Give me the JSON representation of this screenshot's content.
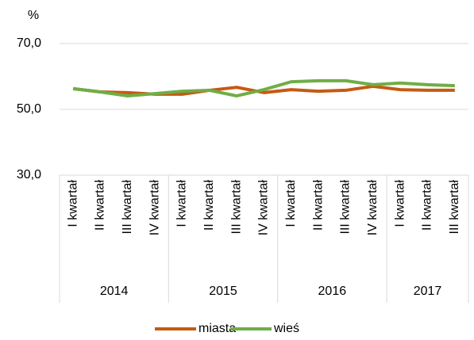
{
  "chart_data": {
    "type": "line",
    "y_unit": "%",
    "category_groups": [
      {
        "name": "2014",
        "categories": [
          "I kwartał",
          "II kwartał",
          "III kwartał",
          "IV kwartał"
        ]
      },
      {
        "name": "2015",
        "categories": [
          "I kwartał",
          "II kwartał",
          "III kwartał",
          "IV kwartał"
        ]
      },
      {
        "name": "2016",
        "categories": [
          "I kwartał",
          "II kwartał",
          "III kwartał",
          "IV kwartał"
        ]
      },
      {
        "name": "2017",
        "categories": [
          "I kwartał",
          "II kwartał",
          "III kwartał"
        ]
      }
    ],
    "series": [
      {
        "name": "miasta",
        "color": "#c55a11",
        "values": [
          56.3,
          55.3,
          55.1,
          54.6,
          54.6,
          55.8,
          56.7,
          55.1,
          56.0,
          55.5,
          55.8,
          57.0,
          56.0,
          55.8,
          55.8
        ]
      },
      {
        "name": "wieś",
        "color": "#70ad47",
        "values": [
          56.3,
          55.3,
          54.1,
          54.8,
          55.5,
          55.8,
          54.1,
          56.0,
          58.4,
          58.7,
          58.7,
          57.5,
          58.0,
          57.5,
          57.2
        ]
      }
    ],
    "ylim": [
      30,
      70
    ],
    "yticks": [
      {
        "value": 30,
        "label": "30,0"
      },
      {
        "value": 50,
        "label": "50,0"
      },
      {
        "value": 70,
        "label": "70,0"
      }
    ],
    "grid": true,
    "legend": "bottom"
  }
}
